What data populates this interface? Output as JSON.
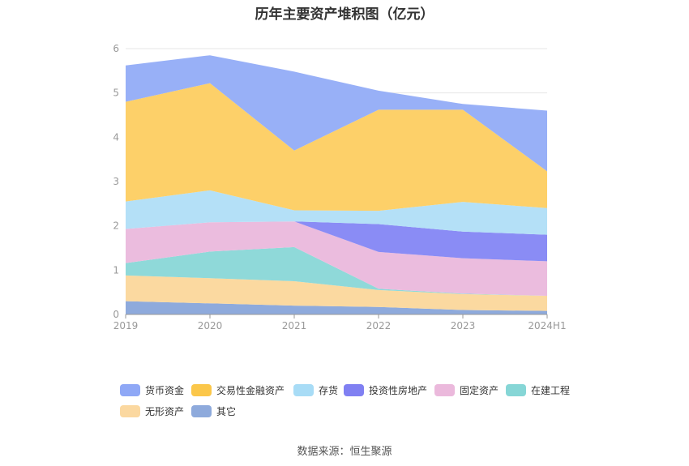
{
  "chart_data": {
    "type": "area",
    "stacked": true,
    "title": "历年主要资产堆积图（亿元）",
    "categories": [
      "2019",
      "2020",
      "2021",
      "2022",
      "2023",
      "2024H1"
    ],
    "y_ticks": [
      "0",
      "1",
      "2",
      "3",
      "4",
      "5",
      "6"
    ],
    "ylim": [
      0,
      6
    ],
    "grid": true,
    "legend_position": "bottom",
    "series": [
      {
        "name": "其它",
        "color": "#8eaadc",
        "values": [
          0.3,
          0.25,
          0.2,
          0.17,
          0.1,
          0.08
        ]
      },
      {
        "name": "无形资产",
        "color": "#fbd9a0",
        "values": [
          0.58,
          0.57,
          0.55,
          0.38,
          0.36,
          0.34
        ]
      },
      {
        "name": "在建工程",
        "color": "#8fd9d9",
        "values": [
          0.28,
          0.6,
          0.77,
          0.03,
          0.01,
          0.0
        ]
      },
      {
        "name": "固定资产",
        "color": "#ebbcde",
        "values": [
          0.77,
          0.66,
          0.58,
          0.83,
          0.8,
          0.78
        ]
      },
      {
        "name": "投资性房地产",
        "color": "#8a8cf5",
        "values": [
          0.0,
          0.0,
          0.0,
          0.63,
          0.6,
          0.6
        ]
      },
      {
        "name": "存货",
        "color": "#b4e0f7",
        "values": [
          0.62,
          0.72,
          0.25,
          0.3,
          0.67,
          0.6
        ]
      },
      {
        "name": "交易性金融资产",
        "color": "#fdd069",
        "values": [
          2.25,
          2.42,
          1.35,
          2.28,
          2.08,
          0.83
        ]
      },
      {
        "name": "货币资金",
        "color": "#98b0f7",
        "values": [
          0.82,
          0.63,
          1.78,
          0.43,
          0.13,
          1.37
        ]
      }
    ],
    "legend_order": [
      "货币资金",
      "交易性金融资产",
      "存货",
      "投资性房地产",
      "固定资产",
      "在建工程",
      "无形资产",
      "其它"
    ],
    "legend_colors": {
      "货币资金": "#8fa8f6",
      "交易性金融资产": "#fbc74a",
      "存货": "#a8dcf6",
      "投资性房地产": "#8080f2",
      "固定资产": "#ebb9dc",
      "在建工程": "#86d6d6",
      "无形资产": "#fbd8a0",
      "其它": "#8eaadc"
    }
  },
  "source_text": "数据来源：恒生聚源"
}
